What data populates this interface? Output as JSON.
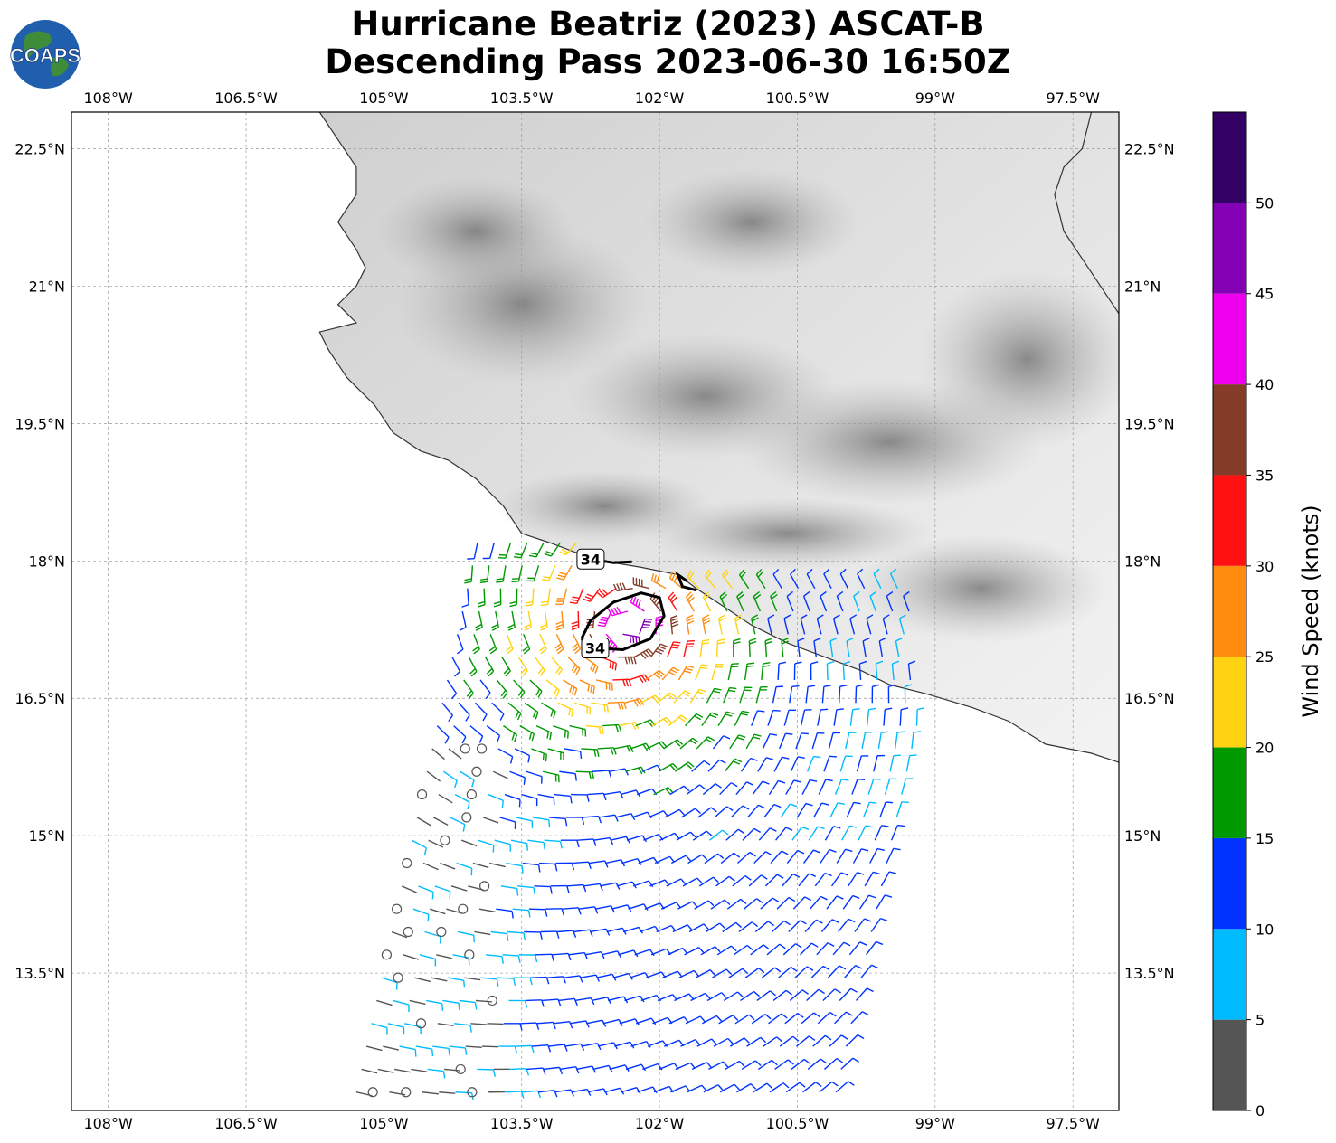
{
  "title": {
    "line1": "Hurricane Beatriz (2023) ASCAT-B",
    "line2": "Descending Pass 2023-06-30 16:50Z"
  },
  "logo": {
    "text": "COAPS",
    "icon": "globe-logo-icon"
  },
  "map": {
    "lon_range": [
      -108.4,
      -97.0
    ],
    "lat_range": [
      12.0,
      22.9
    ],
    "lon_ticks": [
      {
        "value": -108,
        "label": "108°W"
      },
      {
        "value": -106.5,
        "label": "106.5°W"
      },
      {
        "value": -105,
        "label": "105°W"
      },
      {
        "value": -103.5,
        "label": "103.5°W"
      },
      {
        "value": -102,
        "label": "102°W"
      },
      {
        "value": -100.5,
        "label": "100.5°W"
      },
      {
        "value": -99,
        "label": "99°W"
      },
      {
        "value": -97.5,
        "label": "97.5°W"
      }
    ],
    "lat_ticks": [
      {
        "value": 22.5,
        "label": "22.5°N"
      },
      {
        "value": 21,
        "label": "21°N"
      },
      {
        "value": 19.5,
        "label": "19.5°N"
      },
      {
        "value": 18,
        "label": "18°N"
      },
      {
        "value": 16.5,
        "label": "16.5°N"
      },
      {
        "value": 15,
        "label": "15°N"
      },
      {
        "value": 13.5,
        "label": "13.5°N"
      }
    ],
    "grid": true,
    "coastline": [
      [
        -105.7,
        22.9
      ],
      [
        -105.5,
        22.6
      ],
      [
        -105.3,
        22.3
      ],
      [
        -105.3,
        22.0
      ],
      [
        -105.5,
        21.7
      ],
      [
        -105.3,
        21.4
      ],
      [
        -105.2,
        21.2
      ],
      [
        -105.3,
        21.0
      ],
      [
        -105.5,
        20.8
      ],
      [
        -105.3,
        20.6
      ],
      [
        -105.7,
        20.5
      ],
      [
        -105.6,
        20.3
      ],
      [
        -105.4,
        20.0
      ],
      [
        -105.1,
        19.7
      ],
      [
        -104.9,
        19.4
      ],
      [
        -104.6,
        19.2
      ],
      [
        -104.3,
        19.1
      ],
      [
        -104.0,
        18.9
      ],
      [
        -103.7,
        18.6
      ],
      [
        -103.5,
        18.3
      ],
      [
        -103.2,
        18.2
      ],
      [
        -102.8,
        18.05
      ],
      [
        -102.5,
        17.98
      ],
      [
        -102.2,
        17.93
      ],
      [
        -101.8,
        17.85
      ],
      [
        -101.6,
        17.7
      ],
      [
        -101.3,
        17.5
      ],
      [
        -101.0,
        17.3
      ],
      [
        -100.6,
        17.1
      ],
      [
        -100.2,
        16.95
      ],
      [
        -99.8,
        16.8
      ],
      [
        -99.5,
        16.65
      ],
      [
        -99.1,
        16.55
      ],
      [
        -98.6,
        16.4
      ],
      [
        -98.2,
        16.25
      ],
      [
        -97.8,
        16.0
      ],
      [
        -97.3,
        15.9
      ],
      [
        -97.0,
        15.8
      ]
    ],
    "east_coast": [
      [
        -97.3,
        22.9
      ],
      [
        -97.4,
        22.5
      ],
      [
        -97.6,
        22.3
      ],
      [
        -97.7,
        22.0
      ],
      [
        -97.6,
        21.6
      ],
      [
        -97.4,
        21.3
      ],
      [
        -97.2,
        21.0
      ],
      [
        -97.0,
        20.7
      ]
    ],
    "wind_contours": [
      {
        "label": "34",
        "points": [
          [
            -102.85,
            17.15
          ],
          [
            -102.75,
            17.35
          ],
          [
            -102.5,
            17.55
          ],
          [
            -102.2,
            17.65
          ],
          [
            -102.0,
            17.6
          ],
          [
            -101.95,
            17.4
          ],
          [
            -102.1,
            17.15
          ],
          [
            -102.4,
            17.03
          ],
          [
            -102.7,
            17.05
          ],
          [
            -102.85,
            17.15
          ]
        ]
      },
      {
        "label": "34",
        "points": [
          [
            -102.9,
            18.1
          ],
          [
            -102.75,
            18.02
          ],
          [
            -102.5,
            17.98
          ],
          [
            -102.3,
            17.99
          ]
        ]
      },
      {
        "label": "",
        "points": [
          [
            -101.7,
            17.78
          ],
          [
            -101.8,
            17.85
          ],
          [
            -101.75,
            17.72
          ],
          [
            -101.6,
            17.68
          ]
        ]
      }
    ],
    "wind_speed_unit": "knots"
  },
  "colorbar": {
    "label": "Wind Speed (knots)",
    "ticks": [
      "0",
      "5",
      "10",
      "15",
      "20",
      "25",
      "30",
      "35",
      "40",
      "45",
      "50"
    ],
    "bins": [
      {
        "min": 0,
        "max": 5,
        "color": "#555555"
      },
      {
        "min": 5,
        "max": 10,
        "color": "#00bbff"
      },
      {
        "min": 10,
        "max": 15,
        "color": "#0033ff"
      },
      {
        "min": 15,
        "max": 20,
        "color": "#009900"
      },
      {
        "min": 20,
        "max": 25,
        "color": "#ffd311"
      },
      {
        "min": 25,
        "max": 30,
        "color": "#ff8c0f"
      },
      {
        "min": 30,
        "max": 35,
        "color": "#ff1111"
      },
      {
        "min": 35,
        "max": 40,
        "color": "#843c28"
      },
      {
        "min": 40,
        "max": 45,
        "color": "#ee00ee"
      },
      {
        "min": 45,
        "max": 50,
        "color": "#8400b5"
      },
      {
        "min": 50,
        "max": 55,
        "color": "#330066"
      }
    ]
  }
}
